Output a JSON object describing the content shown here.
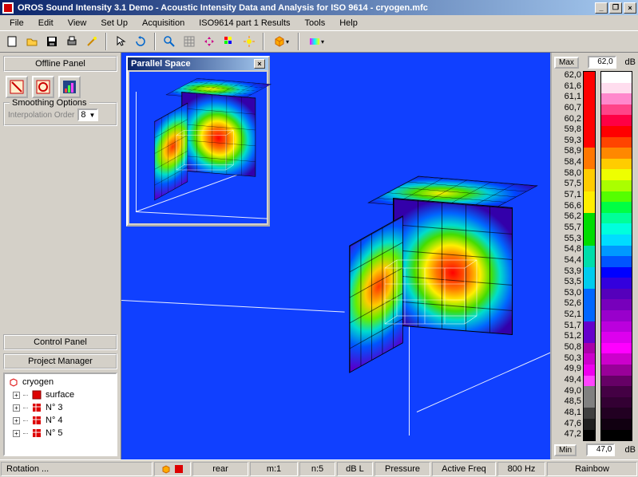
{
  "window": {
    "title": "OROS Sound Intensity 3.1 Demo - Acoustic Intensity Data and Analysis for ISO 9614 - cryogen.mfc"
  },
  "menu": [
    "File",
    "Edit",
    "View",
    "Set Up",
    "Acquisition",
    "ISO9614 part 1 Results",
    "Tools",
    "Help"
  ],
  "panels": {
    "offline": "Offline Panel",
    "smoothing": "Smoothing Options",
    "interp_label": "Interpolation Order",
    "interp_value": "8",
    "control": "Control Panel",
    "project": "Project Manager"
  },
  "tree": {
    "root": "cryogen",
    "items": [
      "surface",
      "N° 3",
      "N° 4",
      "N° 5"
    ]
  },
  "inner_window": {
    "title": "Parallel Space"
  },
  "scale": {
    "max_label": "Max",
    "max_value": "62,0",
    "unit": "dB",
    "min_label": "Min",
    "min_value": "47,0",
    "ticks": [
      "62,0",
      "61,6",
      "61,1",
      "60,7",
      "60,2",
      "59,8",
      "59,3",
      "58,9",
      "58,4",
      "58,0",
      "57,5",
      "57,1",
      "56,6",
      "56,2",
      "55,7",
      "55,3",
      "54,8",
      "54,4",
      "53,9",
      "53,5",
      "53,0",
      "52,6",
      "52,1",
      "51,7",
      "51,2",
      "50,8",
      "50,3",
      "49,9",
      "49,4",
      "49,0",
      "48,5",
      "48,1",
      "47,6",
      "47,2"
    ],
    "bar1_colors": [
      "#ff0000",
      "#ff0000",
      "#ff0000",
      "#ff0000",
      "#ff0000",
      "#ff0000",
      "#ff0000",
      "#ff7700",
      "#ff7700",
      "#ffcc00",
      "#ffcc00",
      "#ffee00",
      "#ffee00",
      "#00dd00",
      "#00dd00",
      "#00dd00",
      "#00ddaa",
      "#00ddaa",
      "#00ccee",
      "#00ccee",
      "#0066ff",
      "#0066ff",
      "#0066ff",
      "#6600cc",
      "#6600cc",
      "#aa00aa",
      "#cc00cc",
      "#ee00ee",
      "#ff44ff",
      "#808080",
      "#808080",
      "#404040",
      "#202020",
      "#000000"
    ],
    "bar2_gradient": [
      "#ffffff",
      "#ffddee",
      "#ff88cc",
      "#ff4488",
      "#ff0044",
      "#ff0000",
      "#ff4400",
      "#ff8800",
      "#ffcc00",
      "#eeff00",
      "#aaff00",
      "#55ff00",
      "#00ff44",
      "#00ff99",
      "#00ffdd",
      "#00ddff",
      "#0099ff",
      "#0055ff",
      "#0000ff",
      "#3300dd",
      "#5500bb",
      "#7700bb",
      "#9900cc",
      "#bb00dd",
      "#dd00ee",
      "#ff00ff",
      "#cc00cc",
      "#990099",
      "#660066",
      "#440044",
      "#330033",
      "#220022",
      "#110011",
      "#000000"
    ]
  },
  "status": {
    "rotation": "Rotation ...",
    "rear": "rear",
    "m": "m:1",
    "n": "n:5",
    "db": "dB L",
    "pressure": "Pressure",
    "freq": "Active Freq",
    "hz": "800 Hz",
    "palette": "Rainbow"
  }
}
